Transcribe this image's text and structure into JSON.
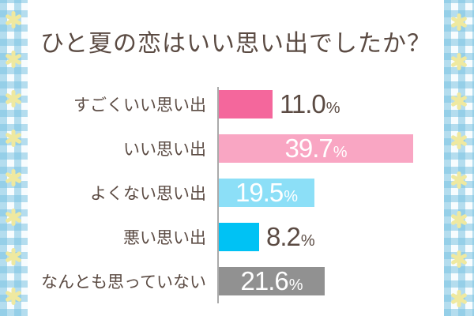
{
  "page": {
    "frame_check_color": "#7CC4E2",
    "flower_color": "#efe9a0",
    "panel_color": "#ffffff",
    "text_color": "#5b4b43",
    "axis_color": "#aaaaaa"
  },
  "title": {
    "text": "ひと夏の恋はいい思い出でしたか？"
  },
  "chart_data": {
    "type": "bar",
    "orientation": "horizontal",
    "unit": "%",
    "title": "ひと夏の恋はいい思い出でしたか？",
    "categories": [
      "すごくいい思い出",
      "いい思い出",
      "よくない思い出",
      "悪い思い出",
      "なんとも思っていない"
    ],
    "values": [
      11.0,
      39.7,
      19.5,
      8.2,
      21.6
    ],
    "value_labels": [
      "11.0",
      "39.7",
      "19.5",
      "8.2",
      "21.6"
    ],
    "bar_colors": [
      "#f4679c",
      "#f9a6c3",
      "#8cdff7",
      "#00c2f4",
      "#919191"
    ],
    "label_inside": [
      false,
      true,
      true,
      false,
      true
    ],
    "xlim": [
      0,
      42
    ],
    "grid": false,
    "legend": false
  }
}
